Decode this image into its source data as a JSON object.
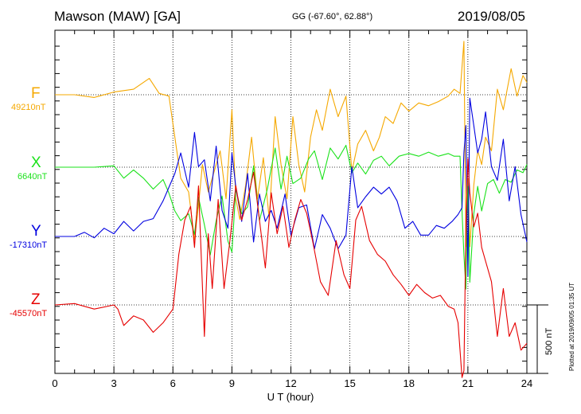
{
  "header": {
    "station": "Mawson (MAW)  [GA]",
    "coords": "GG (-67.60°,  62.88°)",
    "date": "2019/08/05"
  },
  "footer_note": "Plotted at 2019/09/05 01:35 UT",
  "chart_data": {
    "type": "line",
    "title": "Mawson (MAW)  [GA]",
    "xlabel": "U T (hour)",
    "xlim": [
      0,
      24
    ],
    "xticks": [
      0,
      3,
      6,
      9,
      12,
      15,
      18,
      21,
      24
    ],
    "grid": true,
    "scale_bar": {
      "value": 500,
      "label": "500 nT"
    },
    "series": [
      {
        "name": "F",
        "baseline_label": "49210nT",
        "baseline": 49210,
        "color": "#f5a800",
        "x": [
          0,
          1,
          2,
          3,
          4,
          4.8,
          5.3,
          5.8,
          6.1,
          6.4,
          6.8,
          7.1,
          7.3,
          7.5,
          7.8,
          8.1,
          8.4,
          8.7,
          9.0,
          9.2,
          9.4,
          9.7,
          10.0,
          10.3,
          10.6,
          10.9,
          11.2,
          11.5,
          11.8,
          12.1,
          12.4,
          12.7,
          13.0,
          13.3,
          13.6,
          14.0,
          14.4,
          14.8,
          15.1,
          15.4,
          15.8,
          16.2,
          16.5,
          16.8,
          17.2,
          17.6,
          18.0,
          18.5,
          19.0,
          19.5,
          20.0,
          20.3,
          20.6,
          20.8,
          20.9,
          21.0,
          21.1,
          21.3,
          21.5,
          21.7,
          21.9,
          22.2,
          22.5,
          22.8,
          23.2,
          23.5,
          23.8,
          24.0
        ],
        "y": [
          49210,
          49210,
          49190,
          49230,
          49250,
          49330,
          49220,
          49200,
          48900,
          48600,
          48500,
          48150,
          48400,
          48700,
          48500,
          48650,
          48800,
          48450,
          49100,
          48450,
          48300,
          48550,
          48900,
          48450,
          48750,
          48300,
          49050,
          48700,
          48450,
          49050,
          48700,
          48500,
          48900,
          49100,
          48950,
          49250,
          49050,
          49200,
          48650,
          48850,
          48950,
          48800,
          48900,
          49050,
          49000,
          49150,
          49090,
          49150,
          49130,
          49160,
          49200,
          49250,
          49220,
          49600,
          48100,
          48600,
          48100,
          48550,
          48800,
          48700,
          48900,
          48800,
          49250,
          49100,
          49400,
          49200,
          49350,
          49300
        ]
      },
      {
        "name": "X",
        "baseline_label": "6640nT",
        "baseline": 6640,
        "color": "#1be21b",
        "x": [
          0,
          1,
          2,
          3,
          3.5,
          4,
          4.5,
          5,
          5.5,
          5.8,
          6.1,
          6.4,
          6.8,
          7.1,
          7.3,
          7.6,
          7.9,
          8.2,
          8.5,
          8.8,
          9.0,
          9.2,
          9.5,
          9.8,
          10.1,
          10.4,
          10.8,
          11.2,
          11.5,
          11.8,
          12.1,
          12.5,
          12.9,
          13.2,
          13.6,
          14.0,
          14.4,
          14.8,
          15.1,
          15.4,
          15.8,
          16.2,
          16.6,
          17.0,
          17.5,
          18.0,
          18.5,
          19.0,
          19.5,
          20.0,
          20.3,
          20.6,
          20.7,
          20.8,
          20.9,
          21.0,
          21.1,
          21.3,
          21.5,
          21.7,
          22.0,
          22.3,
          22.6,
          22.9,
          23.2,
          23.5,
          23.8,
          24.0
        ],
        "y": [
          6640,
          6640,
          6640,
          6650,
          6560,
          6620,
          6560,
          6480,
          6550,
          6450,
          6320,
          6250,
          6300,
          6150,
          6420,
          6220,
          6000,
          6250,
          6430,
          6100,
          6020,
          6480,
          6300,
          6350,
          6650,
          6250,
          6480,
          6780,
          6480,
          6720,
          6520,
          6560,
          6700,
          6760,
          6550,
          6780,
          6700,
          6800,
          6600,
          6670,
          6590,
          6690,
          6720,
          6650,
          6720,
          6740,
          6720,
          6750,
          6720,
          6740,
          6720,
          6720,
          6320,
          6000,
          5750,
          6500,
          5800,
          6300,
          6500,
          6320,
          6520,
          6550,
          6450,
          6550,
          6530,
          6620,
          6600,
          6660
        ]
      },
      {
        "name": "Y",
        "baseline_label": "-17310nT",
        "baseline": -17310,
        "color": "#0000e0",
        "x": [
          0,
          1,
          1.5,
          2,
          2.5,
          3,
          3.5,
          4,
          4.5,
          5,
          5.5,
          5.8,
          6.1,
          6.4,
          6.8,
          7.1,
          7.3,
          7.6,
          7.9,
          8.2,
          8.5,
          8.8,
          9.0,
          9.2,
          9.5,
          9.8,
          10.1,
          10.4,
          10.7,
          11.0,
          11.3,
          11.7,
          12.0,
          12.4,
          12.8,
          13.2,
          13.6,
          14.0,
          14.4,
          14.8,
          15.1,
          15.4,
          15.8,
          16.2,
          16.6,
          17.0,
          17.4,
          17.8,
          18.2,
          18.6,
          19.0,
          19.4,
          19.8,
          20.2,
          20.5,
          20.7,
          20.8,
          20.9,
          21.0,
          21.1,
          21.3,
          21.5,
          21.7,
          21.9,
          22.2,
          22.5,
          22.8,
          23.1,
          23.4,
          23.7,
          24.0
        ],
        "y": [
          -17310,
          -17310,
          -17280,
          -17320,
          -17250,
          -17290,
          -17200,
          -17270,
          -17200,
          -17180,
          -17050,
          -16950,
          -16850,
          -16700,
          -16950,
          -16550,
          -16800,
          -16750,
          -17050,
          -16650,
          -17120,
          -17250,
          -16700,
          -16950,
          -17200,
          -16850,
          -17350,
          -17000,
          -17200,
          -17120,
          -17250,
          -17000,
          -17300,
          -17100,
          -17080,
          -17400,
          -17150,
          -17250,
          -17400,
          -17300,
          -16800,
          -17100,
          -17020,
          -16950,
          -17000,
          -16950,
          -17050,
          -17250,
          -17200,
          -17300,
          -17300,
          -17230,
          -17250,
          -17200,
          -17150,
          -17100,
          -16700,
          -16500,
          -17600,
          -16300,
          -16500,
          -16700,
          -16600,
          -16400,
          -16800,
          -16900,
          -16600,
          -17050,
          -16800,
          -17150,
          -17350
        ]
      },
      {
        "name": "Z",
        "baseline_label": "-45570nT",
        "baseline": -45570,
        "color": "#e60000",
        "x": [
          0,
          1,
          2,
          3,
          3.2,
          3.5,
          4,
          4.5,
          5,
          5.5,
          6,
          6.3,
          6.6,
          6.9,
          7.1,
          7.3,
          7.6,
          7.8,
          8.0,
          8.3,
          8.6,
          8.9,
          9.2,
          9.5,
          9.8,
          10.1,
          10.4,
          10.7,
          11.0,
          11.3,
          11.6,
          11.9,
          12.2,
          12.5,
          12.8,
          13.1,
          13.5,
          13.9,
          14.3,
          14.7,
          15.0,
          15.3,
          15.6,
          16.0,
          16.4,
          16.8,
          17.2,
          17.6,
          18.0,
          18.4,
          18.8,
          19.2,
          19.6,
          20.0,
          20.3,
          20.5,
          20.7,
          20.8,
          20.9,
          21.0,
          21.1,
          21.3,
          21.5,
          21.7,
          21.9,
          22.2,
          22.5,
          22.8,
          23.1,
          23.4,
          23.7,
          24.0
        ],
        "y": [
          -45570,
          -45560,
          -45600,
          -45570,
          -45600,
          -45720,
          -45650,
          -45680,
          -45770,
          -45700,
          -45600,
          -45200,
          -44950,
          -44850,
          -45150,
          -44700,
          -45800,
          -45050,
          -45450,
          -44800,
          -45450,
          -45100,
          -44700,
          -44950,
          -44800,
          -44600,
          -44950,
          -45300,
          -44750,
          -45050,
          -44850,
          -45150,
          -44950,
          -44800,
          -44900,
          -45100,
          -45400,
          -45500,
          -45100,
          -45350,
          -45450,
          -44950,
          -44850,
          -45100,
          -45200,
          -45250,
          -45350,
          -45420,
          -45500,
          -45420,
          -45480,
          -45520,
          -45500,
          -45580,
          -45600,
          -45700,
          -46100,
          -46050,
          -45000,
          -44500,
          -44750,
          -45000,
          -44900,
          -45150,
          -45250,
          -45400,
          -45800,
          -45450,
          -45800,
          -45700,
          -45900,
          -45850
        ]
      }
    ]
  }
}
